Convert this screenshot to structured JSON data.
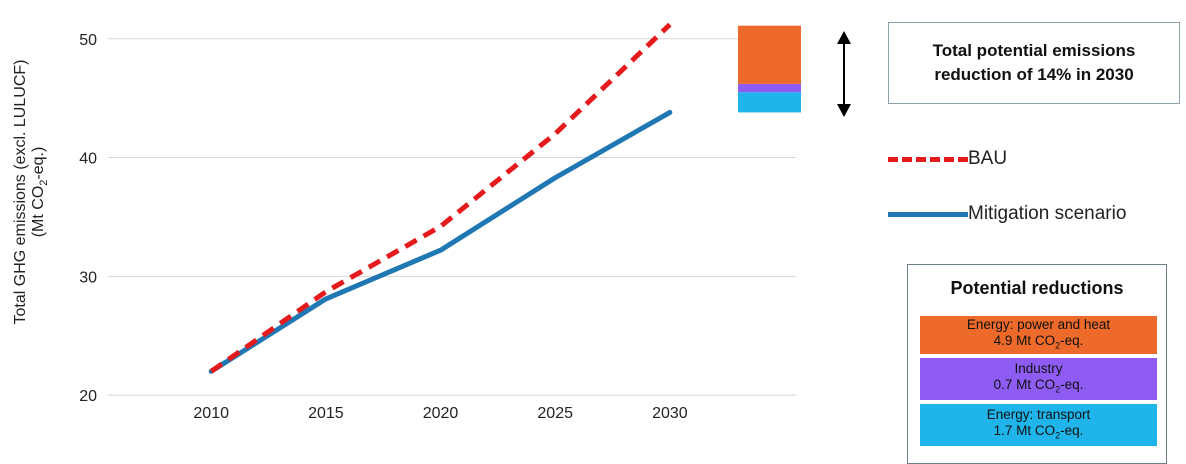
{
  "chart_data": {
    "type": "line",
    "x": [
      2010,
      2015,
      2020,
      2025,
      2030
    ],
    "xticks": [
      "2010",
      "2015",
      "2020",
      "2025",
      "2030"
    ],
    "yticks": [
      "20",
      "30",
      "40",
      "50"
    ],
    "ylim": [
      19,
      52
    ],
    "xlim": [
      2005.5,
      2035.5
    ],
    "ylabel_line1": "Total GHG emissions (excl. LULUCF)",
    "ylabel_line2_prefix": "(Mt CO",
    "ylabel_line2_sub": "2",
    "ylabel_line2_suffix": "-eq.)",
    "grid": true,
    "series": [
      {
        "name": "BAU",
        "values": [
          22.0,
          28.7,
          34.2,
          42.0,
          51.2
        ],
        "color": "#e41a1c",
        "style": "dashed"
      },
      {
        "name": "Mitigation scenario",
        "values": [
          22.0,
          28.1,
          32.2,
          38.3,
          43.8
        ],
        "color": "#1f77b4",
        "style": "solid"
      }
    ],
    "reduction_stack": {
      "segments": [
        {
          "name": "Energy: transport",
          "value": 1.7,
          "color": "#1fb4ea"
        },
        {
          "name": "Industry",
          "value": 0.7,
          "color": "#8e5cf2"
        },
        {
          "name": "Energy: power and heat",
          "value": 4.9,
          "color": "#ee6a2a"
        }
      ]
    },
    "callout": "Total potential emissions reduction of 14% in 2030"
  },
  "legend": [
    {
      "label": "BAU"
    },
    {
      "label": "Mitigation scenario"
    }
  ],
  "reductions_box": {
    "title": "Potential reductions",
    "items": [
      {
        "line1": "Energy: power and heat",
        "amount": "4.9 Mt CO",
        "sub": "2",
        "unit": "-eq.",
        "color": "#ee6a2a"
      },
      {
        "line1": "Industry",
        "amount": "0.7 Mt CO",
        "sub": "2",
        "unit": "-eq.",
        "color": "#8e5cf2"
      },
      {
        "line1": "Energy: transport",
        "amount": "1.7 Mt CO",
        "sub": "2",
        "unit": "-eq.",
        "color": "#1fb4ea"
      }
    ]
  }
}
